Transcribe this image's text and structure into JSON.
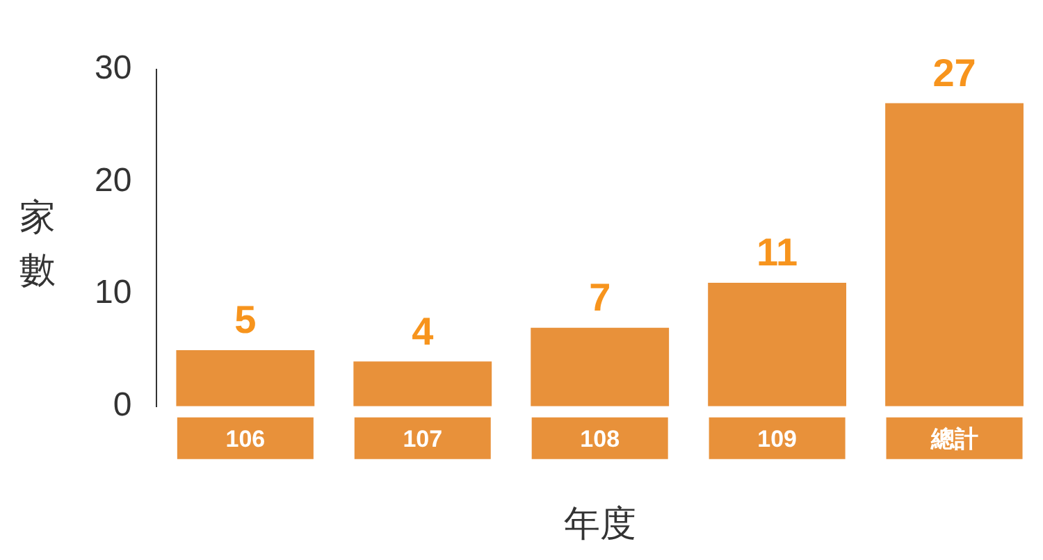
{
  "chart_data": {
    "type": "bar",
    "xlabel": "年度",
    "ylabel": "家數",
    "categories": [
      "106",
      "107",
      "108",
      "109",
      "總計"
    ],
    "values": [
      5,
      4,
      7,
      11,
      27
    ],
    "color": "#e8913a",
    "ylim": [
      0,
      30
    ],
    "yticks": [
      0,
      10,
      20,
      30
    ],
    "grid": false,
    "legend": false,
    "data_labels": true
  }
}
